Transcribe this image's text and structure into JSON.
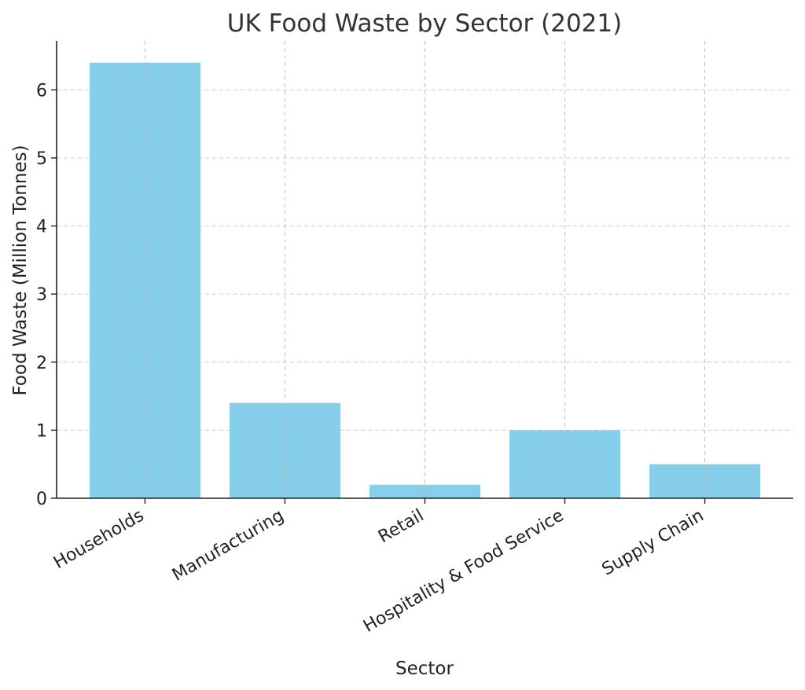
{
  "chart_data": {
    "type": "bar",
    "title": "UK Food Waste by Sector (2021)",
    "xlabel": "Sector",
    "ylabel": "Food Waste (Million Tonnes)",
    "categories": [
      "Households",
      "Manufacturing",
      "Retail",
      "Hospitality & Food Service",
      "Supply Chain"
    ],
    "values": [
      6.4,
      1.4,
      0.2,
      1.0,
      0.5
    ],
    "yticks": [
      0,
      1,
      2,
      3,
      4,
      5,
      6
    ],
    "ylim": [
      0,
      6.72
    ],
    "grid": true,
    "bar_color": "#87CEEB"
  }
}
